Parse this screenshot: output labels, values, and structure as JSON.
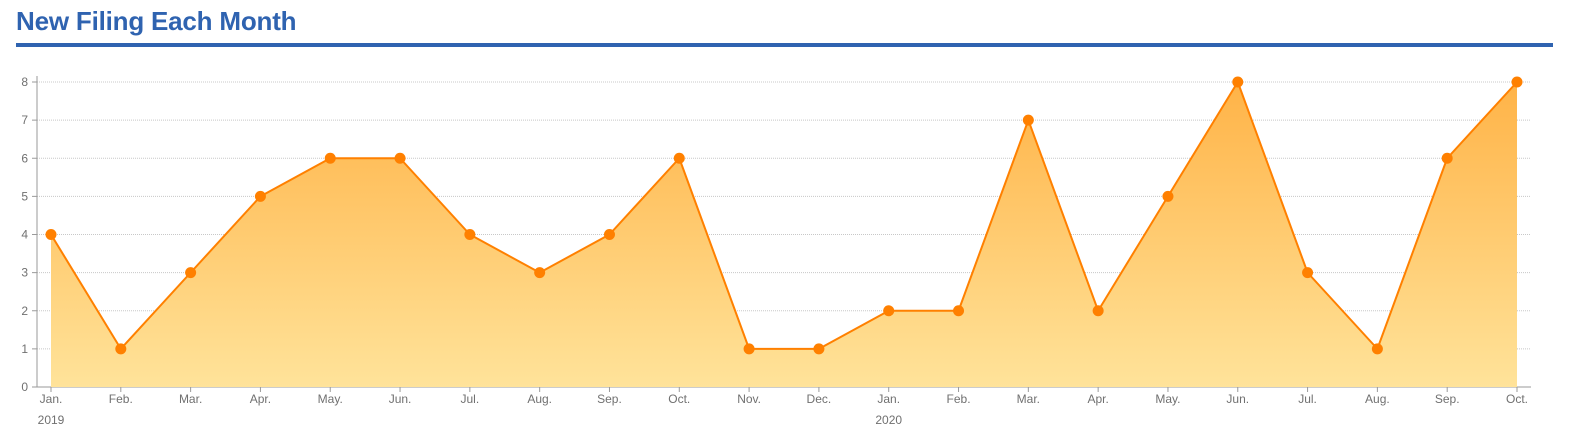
{
  "header": {
    "title": "New Filing Each Month"
  },
  "colors": {
    "title": "#2f63b0",
    "line": "#ff8000",
    "area_top": "#ffb347",
    "area_bottom": "#ffe39a",
    "grid": "#c8c8c8"
  },
  "chart_data": {
    "type": "area",
    "title": "New Filing Each Month",
    "xlabel": "",
    "ylabel": "",
    "ylim": [
      0,
      8
    ],
    "yticks": [
      0,
      1,
      2,
      3,
      4,
      5,
      6,
      7,
      8
    ],
    "grid": true,
    "legend": "none",
    "categories": [
      "Jan.",
      "Feb.",
      "Mar.",
      "Apr.",
      "May.",
      "Jun.",
      "Jul.",
      "Aug.",
      "Sep.",
      "Oct.",
      "Nov.",
      "Dec.",
      "Jan.",
      "Feb.",
      "Mar.",
      "Apr.",
      "May.",
      "Jun.",
      "Jul.",
      "Aug.",
      "Sep.",
      "Oct."
    ],
    "year_labels": [
      {
        "index": 0,
        "label": "2019"
      },
      {
        "index": 12,
        "label": "2020"
      }
    ],
    "values": [
      4,
      1,
      3,
      5,
      6,
      6,
      4,
      3,
      4,
      6,
      1,
      1,
      2,
      2,
      7,
      2,
      5,
      8,
      3,
      1,
      6,
      8
    ]
  }
}
